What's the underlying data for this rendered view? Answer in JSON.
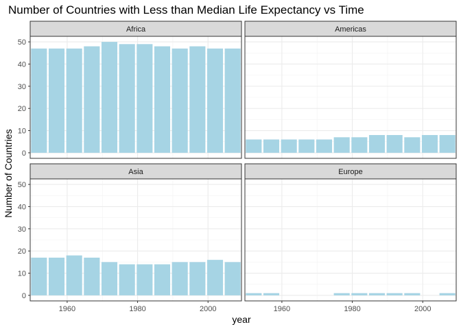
{
  "chart_data": {
    "type": "bar",
    "title": "Number of Countries with Less than Median Life Expectancy vs Time",
    "xlabel": "year",
    "ylabel": "Number of Countries",
    "x": [
      1952,
      1957,
      1962,
      1967,
      1972,
      1977,
      1982,
      1987,
      1992,
      1997,
      2002,
      2007
    ],
    "xlim": [
      1949.5,
      2009.5
    ],
    "ylim": [
      -2.5,
      52.5
    ],
    "xticks": [
      1960,
      1980,
      2000
    ],
    "yticks": [
      0,
      10,
      20,
      30,
      40,
      50
    ],
    "grid": true,
    "bar_color": "#a6d4e4",
    "panels": [
      {
        "name": "Africa",
        "values": [
          47,
          47,
          47,
          48,
          50,
          49,
          49,
          48,
          47,
          48,
          47,
          47
        ]
      },
      {
        "name": "Americas",
        "values": [
          6,
          6,
          6,
          6,
          6,
          7,
          7,
          8,
          8,
          7,
          8,
          8
        ]
      },
      {
        "name": "Asia",
        "values": [
          17,
          17,
          18,
          17,
          15,
          14,
          14,
          14,
          15,
          15,
          16,
          15
        ]
      },
      {
        "name": "Europe",
        "values": [
          1,
          1,
          0,
          0,
          0,
          1,
          1,
          1,
          1,
          1,
          0,
          1
        ]
      }
    ]
  }
}
